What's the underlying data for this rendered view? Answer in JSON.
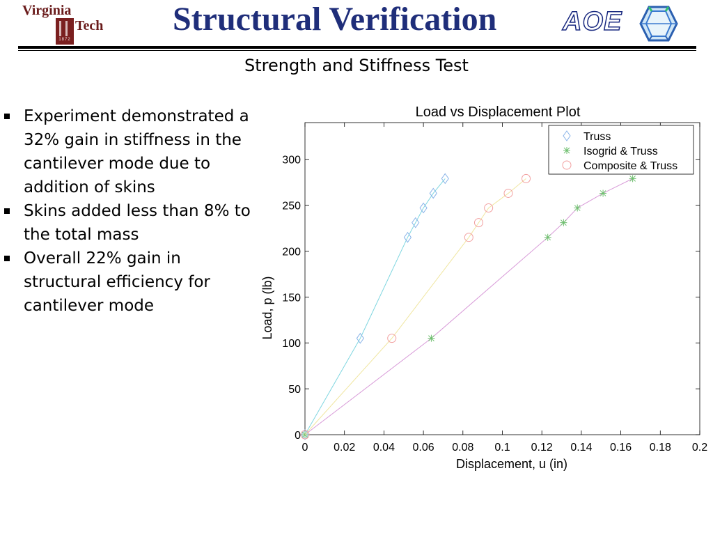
{
  "header": {
    "logo_left": {
      "line1": "Virginia",
      "line2": "Tech",
      "year": "1872"
    },
    "title": "Structural Verification",
    "logo_right": "AOE"
  },
  "subtitle": "Strength and Stiffness Test",
  "bullets": [
    "Experiment demonstrated a 32% gain in stiffness in the cantilever mode due to addition of skins",
    "Skins added less than 8% to the total mass",
    "Overall 22% gain in structural efficiency for cantilever mode"
  ],
  "colors": {
    "title": "#1f2e7a",
    "logo_maroon": "#6a1b1b"
  },
  "chart_data": {
    "type": "line",
    "title": "Load vs Displacement Plot",
    "xlabel": "Displacement, u (in)",
    "ylabel": "Load, p (lb)",
    "xlim": [
      0,
      0.2
    ],
    "ylim": [
      0,
      340
    ],
    "xticks": [
      "0",
      "0.02",
      "0.04",
      "0.06",
      "0.08",
      "0.1",
      "0.12",
      "0.14",
      "0.16",
      "0.18",
      "0.2"
    ],
    "yticks": [
      "0",
      "50",
      "100",
      "150",
      "200",
      "250",
      "300"
    ],
    "legend_position": "top-right",
    "grid": false,
    "series": [
      {
        "name": "Truss",
        "marker": "diamond",
        "color": "#8ab4e8",
        "line_color": "#7fd6e0",
        "points": [
          [
            0,
            0
          ],
          [
            0.028,
            105
          ],
          [
            0.052,
            215
          ],
          [
            0.056,
            231
          ],
          [
            0.06,
            247
          ],
          [
            0.065,
            263
          ],
          [
            0.071,
            279
          ]
        ]
      },
      {
        "name": "Isogrid & Truss",
        "marker": "star",
        "color": "#6fbf6f",
        "line_color": "#d89ad8",
        "points": [
          [
            0,
            0
          ],
          [
            0.064,
            105
          ],
          [
            0.123,
            215
          ],
          [
            0.131,
            231
          ],
          [
            0.138,
            247
          ],
          [
            0.151,
            263
          ],
          [
            0.166,
            279
          ]
        ]
      },
      {
        "name": "Composite & Truss",
        "marker": "circle",
        "color": "#f2a0a0",
        "line_color": "#f0e6a0",
        "points": [
          [
            0,
            0
          ],
          [
            0.044,
            105
          ],
          [
            0.083,
            215
          ],
          [
            0.088,
            231
          ],
          [
            0.093,
            247
          ],
          [
            0.103,
            263
          ],
          [
            0.112,
            279
          ]
        ]
      }
    ]
  }
}
